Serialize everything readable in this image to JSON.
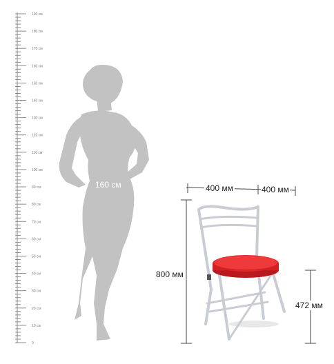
{
  "ruler": {
    "ticks": [
      {
        "value": 0,
        "label": "0"
      },
      {
        "value": 10,
        "label": "10 см"
      },
      {
        "value": 20,
        "label": "20 см"
      },
      {
        "value": 30,
        "label": "30 см"
      },
      {
        "value": 40,
        "label": "40 см"
      },
      {
        "value": 50,
        "label": "50 см"
      },
      {
        "value": 60,
        "label": "60 см"
      },
      {
        "value": 70,
        "label": "70 см"
      },
      {
        "value": 80,
        "label": "80 см"
      },
      {
        "value": 90,
        "label": "90 см"
      },
      {
        "value": 100,
        "label": "100 см"
      },
      {
        "value": 110,
        "label": "110 см"
      },
      {
        "value": 120,
        "label": "120 см"
      },
      {
        "value": 130,
        "label": "130 см"
      },
      {
        "value": 140,
        "label": "140 см"
      },
      {
        "value": 150,
        "label": "150 см"
      },
      {
        "value": 160,
        "label": "160 см"
      },
      {
        "value": 170,
        "label": "170 см"
      },
      {
        "value": 180,
        "label": "180 см"
      },
      {
        "value": 190,
        "label": "190 см"
      }
    ]
  },
  "figure": {
    "height_label": "160 см"
  },
  "chair": {
    "width_label": "400 мм",
    "depth_label": "400 мм",
    "height_label": "800 мм",
    "seat_height_label": "472 мм"
  },
  "colors": {
    "silhouette": "#c2c2c2",
    "frame": "#c9cdd3",
    "seat": "#e3262a",
    "ruler": "#888888"
  }
}
